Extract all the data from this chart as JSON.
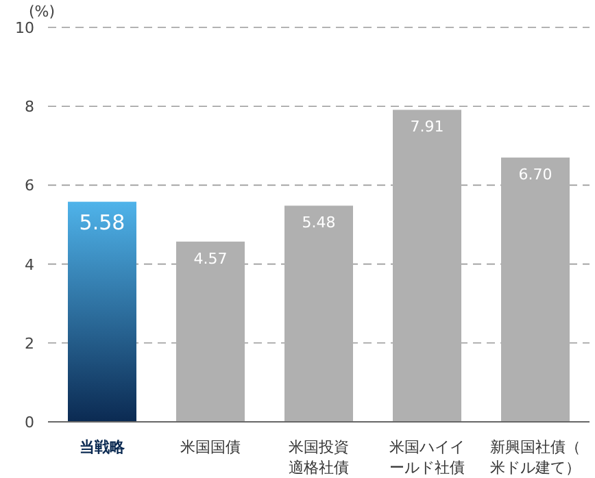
{
  "chart_data": {
    "type": "bar",
    "ylabel": "(%)",
    "categories": [
      "当戦略",
      "米国国債",
      "米国投資適格社債",
      "米国ハイイールド社債",
      "新興国社債（米ドル建て）"
    ],
    "values": [
      5.58,
      4.57,
      5.48,
      7.91,
      6.7
    ],
    "value_labels": [
      "5.58",
      "4.57",
      "5.48",
      "7.91",
      "6.70"
    ],
    "colors": [
      "#0b2a52",
      "#b0b0b0",
      "#b0b0b0",
      "#b0b0b0",
      "#b0b0b0"
    ],
    "ylim": [
      0,
      10
    ],
    "yticks": [
      0,
      2,
      4,
      6,
      8,
      10
    ],
    "grid": "y"
  }
}
